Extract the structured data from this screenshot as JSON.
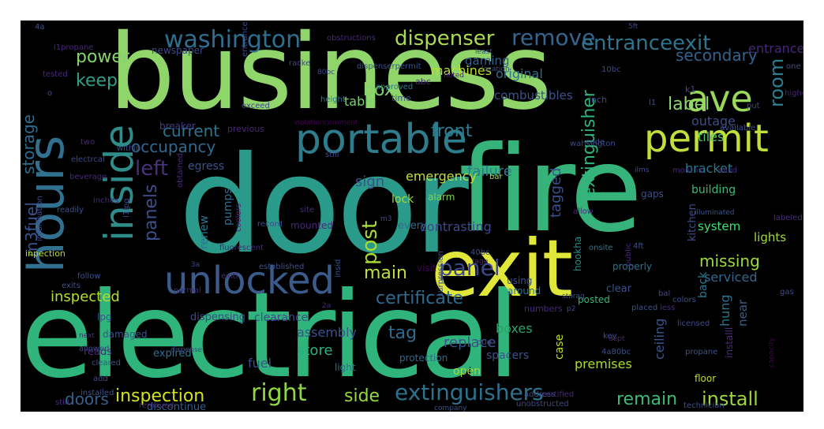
{
  "words": [
    {
      "text": "business",
      "color": "#8fd56a"
    },
    {
      "text": "door",
      "color": "#2a9a8a"
    },
    {
      "text": "fire",
      "color": "#36b37a"
    },
    {
      "text": "electrical",
      "color": "#2fb47c"
    },
    {
      "text": "exit",
      "color": "#e1e73a"
    },
    {
      "text": "hours",
      "color": "#31708e"
    },
    {
      "text": "inside",
      "color": "#2e8d8b"
    },
    {
      "text": "unlocked",
      "color": "#3b5b8b"
    },
    {
      "text": "portable",
      "color": "#2e7d8d"
    },
    {
      "text": "permit",
      "color": "#c0df3a"
    },
    {
      "text": "ave",
      "color": "#9ad85a"
    },
    {
      "text": "washington",
      "color": "#2f6e8e"
    },
    {
      "text": "dispenser",
      "color": "#a8db52"
    },
    {
      "text": "remove",
      "color": "#35648d"
    },
    {
      "text": "entranceexit",
      "color": "#2f748e"
    },
    {
      "text": "power",
      "color": "#85d46a"
    },
    {
      "text": "keep",
      "color": "#2f9e89"
    },
    {
      "text": "current",
      "color": "#2c738e"
    },
    {
      "text": "occupancy",
      "color": "#31698e"
    },
    {
      "text": "front",
      "color": "#2a7c8e"
    },
    {
      "text": "left",
      "color": "#47327a"
    },
    {
      "text": "storage",
      "color": "#2e6c8e"
    },
    {
      "text": "m3fuel",
      "color": "#3a538b"
    },
    {
      "text": "panels",
      "color": "#3d4e8a"
    },
    {
      "text": "panel",
      "color": "#3f4889"
    },
    {
      "text": "main",
      "color": "#bfe03a"
    },
    {
      "text": "post",
      "color": "#a8db34"
    },
    {
      "text": "room",
      "color": "#2c7f8e"
    },
    {
      "text": "label",
      "color": "#8ed86a"
    },
    {
      "text": "extinguisher",
      "color": "#2fb47c"
    },
    {
      "text": "secondary",
      "color": "#33638d"
    },
    {
      "text": "box",
      "color": "#82d36c"
    },
    {
      "text": "table",
      "color": "#7ad26e"
    },
    {
      "text": "gaming",
      "color": "#34618d"
    },
    {
      "text": "machines",
      "color": "#b8de2f"
    },
    {
      "text": "original",
      "color": "#2d718e"
    },
    {
      "text": "combustibles",
      "color": "#3b528b"
    },
    {
      "text": "outage",
      "color": "#3d4e8a"
    },
    {
      "text": "tiles",
      "color": "#52c569"
    },
    {
      "text": "bracket",
      "color": "#2a788e"
    },
    {
      "text": "tagged",
      "color": "#3b518b"
    },
    {
      "text": "failure",
      "color": "#2c7b8e"
    },
    {
      "text": "emergency",
      "color": "#bfe03a"
    },
    {
      "text": "sign",
      "color": "#3c4f8a"
    },
    {
      "text": "certificate",
      "color": "#2f6b8e"
    },
    {
      "text": "missing",
      "color": "#a0da39"
    },
    {
      "text": "serviced",
      "color": "#31688e"
    },
    {
      "text": "system",
      "color": "#3be26f"
    },
    {
      "text": "inspected",
      "color": "#b5de2b"
    },
    {
      "text": "inspection",
      "color": "#d3e21b"
    },
    {
      "text": "right",
      "color": "#90d743"
    },
    {
      "text": "side",
      "color": "#95d840"
    },
    {
      "text": "extinguishers",
      "color": "#2c728e"
    },
    {
      "text": "remain",
      "color": "#3bbb75"
    },
    {
      "text": "install",
      "color": "#9dd93b"
    },
    {
      "text": "doors",
      "color": "#35618d"
    },
    {
      "text": "assembly",
      "color": "#3b528b"
    },
    {
      "text": "tag",
      "color": "#2f6c8e"
    },
    {
      "text": "store",
      "color": "#2ab07f"
    },
    {
      "text": "replace",
      "color": "#3b528b"
    },
    {
      "text": "boxes",
      "color": "#2ea169"
    },
    {
      "text": "fuel",
      "color": "#3d4e8a"
    },
    {
      "text": "hung",
      "color": "#2c738e"
    },
    {
      "text": "near",
      "color": "#35608d"
    },
    {
      "text": "ceiling",
      "color": "#39568c"
    },
    {
      "text": "back",
      "color": "#2a788e"
    },
    {
      "text": "lights",
      "color": "#a0da39"
    },
    {
      "text": "kitchen",
      "color": "#3e4c8a"
    },
    {
      "text": "building",
      "color": "#3aba76"
    },
    {
      "text": "lock",
      "color": "#a5db36"
    },
    {
      "text": "alarm",
      "color": "#7fd34e"
    },
    {
      "text": "gaps",
      "color": "#3c508b"
    },
    {
      "text": "every",
      "color": "#2f6c8e"
    },
    {
      "text": "pumps",
      "color": "#2f6c8e"
    },
    {
      "text": "renew",
      "color": "#2a768e"
    },
    {
      "text": "egress",
      "color": "#3b528b"
    },
    {
      "text": "open",
      "color": "#a0da39"
    },
    {
      "text": "case",
      "color": "#bddf26"
    },
    {
      "text": "light",
      "color": "#2c728e"
    },
    {
      "text": "spacers",
      "color": "#3b528b"
    },
    {
      "text": "lpg",
      "color": "#3b528b"
    },
    {
      "text": "dispensing",
      "color": "#3e4989"
    },
    {
      "text": "clearance",
      "color": "#3e4c8a"
    },
    {
      "text": "reads",
      "color": "#482878"
    },
    {
      "text": "expired",
      "color": "#2d708e"
    },
    {
      "text": "discontinue",
      "color": "#355f8d"
    },
    {
      "text": "using",
      "color": "#3b528b"
    },
    {
      "text": "around",
      "color": "#2c728e"
    },
    {
      "text": "posted",
      "color": "#37b878"
    },
    {
      "text": "properly",
      "color": "#2c728e"
    },
    {
      "text": "premises",
      "color": "#a8db34"
    },
    {
      "text": "installl",
      "color": "#472d7b"
    },
    {
      "text": "floor",
      "color": "#bddf26"
    },
    {
      "text": "protection",
      "color": "#31688e"
    },
    {
      "text": "hookha",
      "color": "#21918c"
    },
    {
      "text": "numbers",
      "color": "#482878"
    },
    {
      "text": "damaged",
      "color": "#3b528b"
    },
    {
      "text": "clear",
      "color": "#3b528b"
    },
    {
      "text": "onsite",
      "color": "#2a788e"
    },
    {
      "text": "breaker",
      "color": "#433e85"
    },
    {
      "text": "previous",
      "color": "#482878"
    },
    {
      "text": "violationcomment",
      "color": "#440154"
    },
    {
      "text": "code",
      "color": "#3e4989"
    },
    {
      "text": "exceed",
      "color": "#3e4989"
    },
    {
      "text": "time",
      "color": "#3b528b"
    },
    {
      "text": "approved",
      "color": "#2a788e"
    },
    {
      "text": "height",
      "color": "#2a788e"
    },
    {
      "text": "inch",
      "color": "#3e4989"
    },
    {
      "text": "ilms",
      "color": "#3e4989"
    },
    {
      "text": "months",
      "color": "#482878"
    },
    {
      "text": "valid",
      "color": "#482878"
    },
    {
      "text": "available",
      "color": "#3b528b"
    },
    {
      "text": "labeled",
      "color": "#46327e"
    },
    {
      "text": "illuminated",
      "color": "#3b528b"
    },
    {
      "text": "allow",
      "color": "#482878"
    },
    {
      "text": "40bc",
      "color": "#3e4989"
    },
    {
      "text": "tage",
      "color": "#482878"
    },
    {
      "text": "4ft",
      "color": "#3b528b"
    },
    {
      "text": "public",
      "color": "#482878"
    },
    {
      "text": "surpression",
      "color": "#3b528b"
    },
    {
      "text": "bal",
      "color": "#3e4989"
    },
    {
      "text": "p2",
      "color": "#3e4989"
    },
    {
      "text": "key",
      "color": "#3b528b"
    },
    {
      "text": "placed",
      "color": "#3b528b"
    },
    {
      "text": "less",
      "color": "#482878"
    },
    {
      "text": "colors",
      "color": "#3b528b"
    },
    {
      "text": "capacity",
      "color": "#440154"
    },
    {
      "text": "gas",
      "color": "#3e4989"
    },
    {
      "text": "licensed",
      "color": "#3e4989"
    },
    {
      "text": "dept",
      "color": "#482878"
    },
    {
      "text": "4a80bc",
      "color": "#3b528b"
    },
    {
      "text": "propane",
      "color": "#3b528b"
    },
    {
      "text": "storag",
      "color": "#3b528b"
    },
    {
      "text": "2a",
      "color": "#482878"
    },
    {
      "text": "due",
      "color": "#3e4989"
    },
    {
      "text": "certified",
      "color": "#482878"
    },
    {
      "text": "address",
      "color": "#3e4989"
    },
    {
      "text": "unobstructed",
      "color": "#3e4989"
    },
    {
      "text": "company",
      "color": "#3b528b"
    },
    {
      "text": "technician",
      "color": "#3b528b"
    },
    {
      "text": "removed",
      "color": "#482878"
    },
    {
      "text": "installed",
      "color": "#3b528b"
    },
    {
      "text": "still",
      "color": "#482878"
    },
    {
      "text": "add",
      "color": "#3e4989"
    },
    {
      "text": "dispense",
      "color": "#3e4989"
    },
    {
      "text": "cleared",
      "color": "#3b528b"
    },
    {
      "text": "allowed",
      "color": "#3e4989"
    },
    {
      "text": "next",
      "color": "#482878"
    },
    {
      "text": "follow",
      "color": "#3b528b"
    },
    {
      "text": "normal",
      "color": "#482878"
    },
    {
      "text": "exits",
      "color": "#3b528b"
    },
    {
      "text": "inpection",
      "color": "#b5de2b"
    },
    {
      "text": "exiti",
      "color": "#482878"
    },
    {
      "text": "established",
      "color": "#3b528b"
    },
    {
      "text": "readily",
      "color": "#3b528b"
    },
    {
      "text": "3a",
      "color": "#3e4989"
    },
    {
      "text": "site",
      "color": "#482878"
    },
    {
      "text": "insid",
      "color": "#3b528b"
    },
    {
      "text": "inches",
      "color": "#482878"
    },
    {
      "text": "information",
      "color": "#3e4989"
    },
    {
      "text": "electrcal",
      "color": "#3e4989"
    },
    {
      "text": "beverage",
      "color": "#482878"
    },
    {
      "text": "within",
      "color": "#3e4989"
    },
    {
      "text": "two",
      "color": "#482878"
    },
    {
      "text": "l1lpg",
      "color": "#3e4989"
    },
    {
      "text": "obtained",
      "color": "#482878"
    },
    {
      "text": "coolers",
      "color": "#482878"
    },
    {
      "text": "fluorescent",
      "color": "#482878"
    },
    {
      "text": "record",
      "color": "#3e4989"
    },
    {
      "text": "still",
      "color": "#3e4989"
    },
    {
      "text": "contrasting",
      "color": "#3e4989"
    },
    {
      "text": "bar",
      "color": "#a0da39"
    },
    {
      "text": "wahsington",
      "color": "#3e4989"
    },
    {
      "text": "mounted",
      "color": "#482878"
    },
    {
      "text": "m3",
      "color": "#3e4989"
    },
    {
      "text": "visit",
      "color": "#440154"
    },
    {
      "text": "o",
      "color": "#3b528b"
    },
    {
      "text": "newspaper",
      "color": "#3e4989"
    },
    {
      "text": "obstructions",
      "color": "#482878"
    },
    {
      "text": "racke",
      "color": "#3e4989"
    },
    {
      "text": "dispenserpermit",
      "color": "#3b528b"
    },
    {
      "text": "entrance",
      "color": "#3e4989"
    },
    {
      "text": "l1propane",
      "color": "#482878"
    },
    {
      "text": "tested",
      "color": "#482878"
    },
    {
      "text": "4a",
      "color": "#3b528b"
    },
    {
      "text": "5ft",
      "color": "#3e4989"
    },
    {
      "text": "entrancexit",
      "color": "#482878"
    },
    {
      "text": "least",
      "color": "#3b528b"
    },
    {
      "text": "80bc",
      "color": "#3e4989"
    },
    {
      "text": "10bc",
      "color": "#3e4989"
    },
    {
      "text": "location",
      "color": "#3e4989"
    },
    {
      "text": "noted",
      "color": "#482878"
    },
    {
      "text": "abc",
      "color": "#482878"
    },
    {
      "text": "put",
      "color": "#3e4989"
    },
    {
      "text": "higher",
      "color": "#482878"
    },
    {
      "text": "one",
      "color": "#3e4989"
    },
    {
      "text": "k1",
      "color": "#3e4989"
    },
    {
      "text": "l1",
      "color": "#3b528b"
    },
    {
      "text": "c",
      "color": "#3e4989"
    }
  ]
}
